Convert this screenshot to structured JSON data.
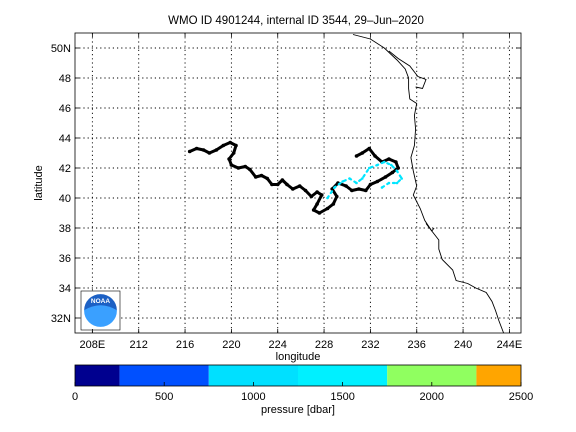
{
  "chart_data": {
    "type": "map",
    "title": "WMO ID 4901244, internal ID 3544, 29–Jun–2020",
    "xlabel": "longitude",
    "ylabel": "latitude",
    "xlim": [
      206.5,
      245
    ],
    "ylim": [
      31,
      51
    ],
    "x_ticks": [
      {
        "value": 208,
        "label": "208E"
      },
      {
        "value": 212,
        "label": "212"
      },
      {
        "value": 216,
        "label": "216"
      },
      {
        "value": 220,
        "label": "220"
      },
      {
        "value": 224,
        "label": "224"
      },
      {
        "value": 228,
        "label": "228"
      },
      {
        "value": 232,
        "label": "232"
      },
      {
        "value": 236,
        "label": "236"
      },
      {
        "value": 240,
        "label": "240"
      },
      {
        "value": 244,
        "label": "244E"
      }
    ],
    "y_ticks": [
      {
        "value": 32,
        "label": "32N"
      },
      {
        "value": 34,
        "label": "34"
      },
      {
        "value": 36,
        "label": "36"
      },
      {
        "value": 38,
        "label": "38"
      },
      {
        "value": 40,
        "label": "40"
      },
      {
        "value": 42,
        "label": "42"
      },
      {
        "value": 44,
        "label": "44"
      },
      {
        "value": 46,
        "label": "46"
      },
      {
        "value": 48,
        "label": "48"
      },
      {
        "value": 50,
        "label": "50N"
      }
    ],
    "grid": true,
    "coastline": [
      [
        230.5,
        50.9
      ],
      [
        232.0,
        50.6
      ],
      [
        233.2,
        50.0
      ],
      [
        234.3,
        49.2
      ],
      [
        235.0,
        48.6
      ],
      [
        235.3,
        48.0
      ],
      [
        235.3,
        47.3
      ],
      [
        235.4,
        46.6
      ],
      [
        236.0,
        46.3
      ],
      [
        235.8,
        45.5
      ],
      [
        235.9,
        44.6
      ],
      [
        235.8,
        43.5
      ],
      [
        235.5,
        42.7
      ],
      [
        235.7,
        41.8
      ],
      [
        236.0,
        40.8
      ],
      [
        235.7,
        40.2
      ],
      [
        236.3,
        39.3
      ],
      [
        236.7,
        38.5
      ],
      [
        237.3,
        37.8
      ],
      [
        237.9,
        37.2
      ],
      [
        237.9,
        36.6
      ],
      [
        238.2,
        35.9
      ],
      [
        239.1,
        35.2
      ],
      [
        239.4,
        34.5
      ],
      [
        240.4,
        34.3
      ],
      [
        241.1,
        34.0
      ],
      [
        242.0,
        33.7
      ],
      [
        242.5,
        33.1
      ],
      [
        242.8,
        32.5
      ],
      [
        243.1,
        31.8
      ],
      [
        243.5,
        31.0
      ]
    ],
    "bays": [
      [
        [
          233.6,
          49.8
        ],
        [
          234.4,
          49.3
        ],
        [
          235.4,
          48.8
        ],
        [
          236.1,
          48.1
        ],
        [
          236.8,
          47.9
        ],
        [
          236.5,
          47.3
        ],
        [
          235.9,
          47.4
        ]
      ],
      [
        [
          236.8,
          38.3
        ],
        [
          237.3,
          37.8
        ],
        [
          237.5,
          38.0
        ]
      ]
    ],
    "series": [
      {
        "pressure_dbar": 0,
        "color": "#000000",
        "points": [
          [
            216.4,
            43.1
          ],
          [
            217.0,
            43.3
          ],
          [
            217.6,
            43.2
          ],
          [
            218.1,
            43.0
          ],
          [
            218.7,
            43.2
          ],
          [
            219.3,
            43.5
          ],
          [
            219.9,
            43.7
          ],
          [
            220.4,
            43.5
          ],
          [
            220.2,
            43.0
          ],
          [
            219.8,
            42.6
          ],
          [
            220.0,
            42.2
          ],
          [
            220.6,
            42.0
          ],
          [
            221.2,
            42.1
          ],
          [
            221.6,
            41.9
          ],
          [
            222.1,
            41.4
          ],
          [
            222.6,
            41.5
          ],
          [
            223.1,
            41.3
          ],
          [
            223.5,
            40.9
          ],
          [
            224.0,
            40.9
          ],
          [
            224.4,
            41.2
          ],
          [
            224.8,
            40.9
          ],
          [
            225.3,
            40.6
          ],
          [
            225.9,
            40.8
          ],
          [
            226.4,
            40.5
          ],
          [
            226.9,
            40.1
          ],
          [
            227.4,
            40.4
          ],
          [
            227.8,
            40.2
          ],
          [
            227.4,
            39.6
          ],
          [
            227.1,
            39.2
          ],
          [
            227.6,
            39.0
          ],
          [
            228.3,
            39.3
          ],
          [
            228.8,
            39.6
          ],
          [
            229.1,
            40.1
          ],
          [
            228.7,
            40.6
          ],
          [
            229.2,
            41.0
          ],
          [
            229.9,
            40.8
          ],
          [
            230.4,
            40.5
          ],
          [
            231.0,
            40.6
          ],
          [
            231.6,
            40.5
          ],
          [
            232.0,
            40.9
          ],
          [
            232.6,
            41.1
          ],
          [
            233.3,
            41.4
          ],
          [
            233.9,
            41.7
          ],
          [
            234.4,
            42.0
          ],
          [
            234.2,
            42.4
          ],
          [
            233.6,
            42.6
          ],
          [
            233.0,
            42.4
          ],
          [
            232.4,
            42.8
          ],
          [
            231.9,
            43.3
          ],
          [
            231.3,
            43.0
          ],
          [
            230.8,
            42.8
          ]
        ]
      },
      {
        "pressure_dbar": 1200,
        "color": "#00e5ff",
        "points": [
          [
            228.3,
            40.0
          ],
          [
            228.9,
            40.7
          ],
          [
            229.6,
            41.1
          ],
          [
            230.2,
            41.3
          ],
          [
            230.8,
            41.0
          ],
          [
            231.3,
            41.3
          ],
          [
            231.9,
            42.0
          ],
          [
            232.6,
            42.2
          ],
          [
            233.2,
            42.4
          ],
          [
            233.8,
            42.2
          ],
          [
            234.3,
            41.8
          ],
          [
            234.7,
            41.3
          ],
          [
            234.3,
            41.0
          ],
          [
            233.6,
            41.0
          ],
          [
            233.0,
            40.7
          ]
        ]
      }
    ],
    "colorbar": {
      "label": "pressure [dbar]",
      "ticks": [
        0,
        500,
        1000,
        1500,
        2000,
        2500
      ],
      "range": [
        0,
        2500
      ],
      "bins": [
        {
          "from": 0,
          "to": 250,
          "color": "#00008f"
        },
        {
          "from": 250,
          "to": 750,
          "color": "#0050ff"
        },
        {
          "from": 750,
          "to": 1250,
          "color": "#00e0ff"
        },
        {
          "from": 1250,
          "to": 1750,
          "color": "#00f0ff"
        },
        {
          "from": 1750,
          "to": 2250,
          "color": "#90ff60"
        },
        {
          "from": 2250,
          "to": 2500,
          "color": "#ffa500"
        }
      ]
    },
    "logo": {
      "name": "noaa-logo",
      "text": "NOAA"
    }
  }
}
